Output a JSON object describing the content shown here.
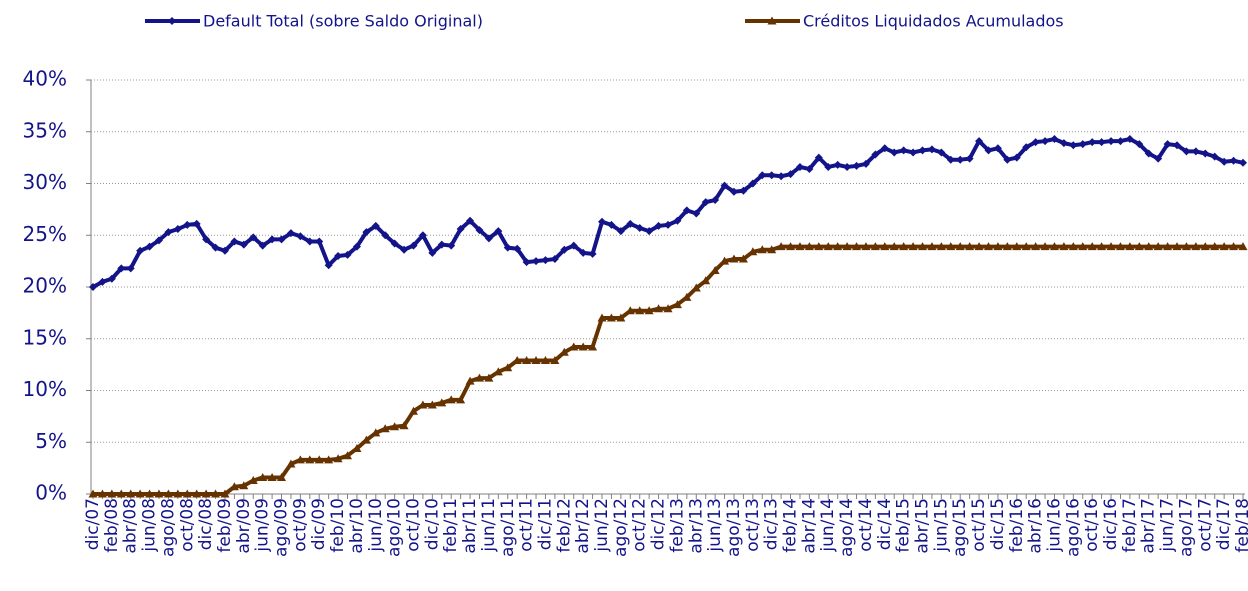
{
  "chart_data": {
    "type": "line",
    "categories": [
      "dic/07",
      null,
      "feb/08",
      null,
      "abr/08",
      null,
      "jun/08",
      null,
      "ago/08",
      null,
      "oct/08",
      null,
      "dic/08",
      null,
      "feb/09",
      null,
      "abr/09",
      null,
      "jun/09",
      null,
      "ago/09",
      null,
      "oct/09",
      null,
      "dic/09",
      null,
      "feb/10",
      null,
      "abr/10",
      null,
      "jun/10",
      null,
      "ago/10",
      null,
      "oct/10",
      null,
      "dic/10",
      null,
      "feb/11",
      null,
      "abr/11",
      null,
      "jun/11",
      null,
      "ago/11",
      null,
      "oct/11",
      null,
      "dic/11",
      null,
      "feb/12",
      null,
      "abr/12",
      null,
      "jun/12",
      null,
      "ago/12",
      null,
      "oct/12",
      null,
      "dic/12",
      null,
      "feb/13",
      null,
      "abr/13",
      null,
      "jun/13",
      null,
      "ago/13",
      null,
      "oct/13",
      null,
      "dic/13",
      null,
      "feb/14",
      null,
      "abr/14",
      null,
      "jun/14",
      null,
      "ago/14",
      null,
      "oct/14",
      null,
      "dic/14",
      null,
      "feb/15",
      null,
      "abr/15",
      null,
      "jun/15",
      null,
      "ago/15",
      null,
      "oct/15",
      null,
      "dic/15",
      null,
      "feb/16",
      null,
      "abr/16",
      null,
      "jun/16",
      null,
      "ago/16",
      null,
      "oct/16",
      null,
      "dic/16",
      null,
      "feb/17",
      null,
      "abr/17",
      null,
      "jun/17",
      null,
      "ago/17",
      null,
      "oct/17",
      null,
      "dic/17",
      null,
      "feb/18"
    ],
    "series": [
      {
        "name": "Default Total (sobre Saldo Original)",
        "color": "#14148a",
        "marker": "diamond",
        "values": [
          20.0,
          20.5,
          20.8,
          21.8,
          21.8,
          23.5,
          23.9,
          24.5,
          25.3,
          25.6,
          26.0,
          26.1,
          24.6,
          23.8,
          23.5,
          24.4,
          24.1,
          24.8,
          24.0,
          24.6,
          24.6,
          25.2,
          24.9,
          24.4,
          24.4,
          22.1,
          23.0,
          23.1,
          23.9,
          25.3,
          25.9,
          25.0,
          24.2,
          23.6,
          24.0,
          25.0,
          23.3,
          24.1,
          24.0,
          25.6,
          26.4,
          25.5,
          24.7,
          25.4,
          23.8,
          23.7,
          22.4,
          22.5,
          22.6,
          22.7,
          23.6,
          24.0,
          23.3,
          23.2,
          26.3,
          26.0,
          25.4,
          26.1,
          25.7,
          25.4,
          25.9,
          26.0,
          26.4,
          27.4,
          27.1,
          28.2,
          28.4,
          29.8,
          29.2,
          29.3,
          30.0,
          30.8,
          30.8,
          30.7,
          30.9,
          31.6,
          31.4,
          32.5,
          31.6,
          31.8,
          31.6,
          31.7,
          31.9,
          32.8,
          33.4,
          33.0,
          33.2,
          33.0,
          33.2,
          33.3,
          33.0,
          32.3,
          32.3,
          32.4,
          34.1,
          33.2,
          33.4,
          32.3,
          32.5,
          33.5,
          34.0,
          34.1,
          34.3,
          33.9,
          33.7,
          33.8,
          34.0,
          34.0,
          34.1,
          34.1,
          34.3,
          33.8,
          32.9,
          32.4,
          33.8,
          33.7,
          33.1,
          33.1,
          32.9,
          32.6,
          32.1,
          32.2,
          32.0
        ]
      },
      {
        "name": "Créditos Liquidados Acumulados",
        "color": "#663300",
        "marker": "triangle",
        "values": [
          0,
          0,
          0,
          0,
          0,
          0,
          0,
          0,
          0,
          0,
          0,
          0,
          0,
          0,
          0,
          0.7,
          0.8,
          1.3,
          1.6,
          1.6,
          1.6,
          2.9,
          3.3,
          3.3,
          3.3,
          3.3,
          3.4,
          3.7,
          4.4,
          5.2,
          5.9,
          6.3,
          6.5,
          6.6,
          8.0,
          8.6,
          8.6,
          8.8,
          9.1,
          9.1,
          10.9,
          11.2,
          11.2,
          11.8,
          12.2,
          12.9,
          12.9,
          12.9,
          12.9,
          12.9,
          13.7,
          14.2,
          14.2,
          14.2,
          17.0,
          17.0,
          17.0,
          17.7,
          17.7,
          17.7,
          17.9,
          17.9,
          18.3,
          19.0,
          19.9,
          20.6,
          21.6,
          22.5,
          22.7,
          22.7,
          23.4,
          23.6,
          23.6,
          23.9,
          23.9,
          23.9,
          23.9,
          23.9,
          23.9,
          23.9,
          23.9,
          23.9,
          23.9,
          23.9,
          23.9,
          23.9,
          23.9,
          23.9,
          23.9,
          23.9,
          23.9,
          23.9,
          23.9,
          23.9,
          23.9,
          23.9,
          23.9,
          23.9,
          23.9,
          23.9,
          23.9,
          23.9,
          23.9,
          23.9,
          23.9,
          23.9,
          23.9,
          23.9,
          23.9,
          23.9,
          23.9,
          23.9,
          23.9,
          23.9,
          23.9,
          23.9,
          23.9,
          23.9,
          23.9,
          23.9,
          23.9,
          23.9,
          23.9
        ]
      }
    ],
    "ylim": [
      0,
      40
    ],
    "yticks": [
      {
        "value": 0,
        "label": "0%"
      },
      {
        "value": 5,
        "label": "5%"
      },
      {
        "value": 10,
        "label": "10%"
      },
      {
        "value": 15,
        "label": "15%"
      },
      {
        "value": 20,
        "label": "20%"
      },
      {
        "value": 25,
        "label": "25%"
      },
      {
        "value": 30,
        "label": "30%"
      },
      {
        "value": 35,
        "label": "35%"
      },
      {
        "value": 40,
        "label": "40%"
      }
    ],
    "grid": true,
    "legend": "top"
  }
}
